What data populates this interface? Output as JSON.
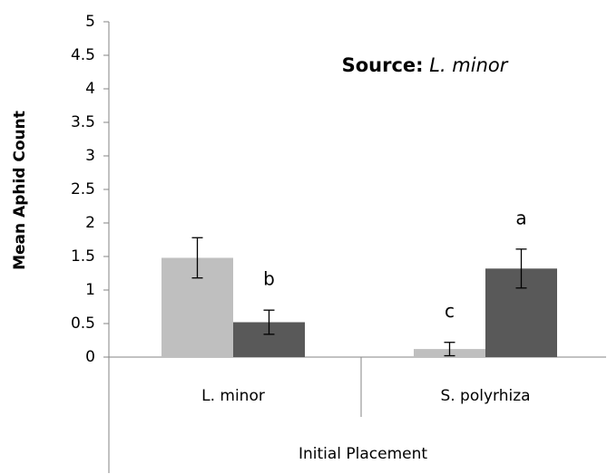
{
  "chart_data": {
    "type": "bar",
    "title": [
      "Source:",
      "L. minor"
    ],
    "x_label": "Initial Placement",
    "y_label": "Mean Aphid Count",
    "categories": [
      "L. minor",
      "S. polyrhiza"
    ],
    "series": [
      {
        "color": "#bfbfbf",
        "values": [
          1.48,
          0.12
        ],
        "errors": [
          0.3,
          0.1
        ],
        "letters": [
          null,
          "c"
        ]
      },
      {
        "color": "#595959",
        "values": [
          0.52,
          1.32
        ],
        "errors": [
          0.18,
          0.29
        ],
        "letters": [
          "b",
          "a"
        ]
      }
    ],
    "ylim": [
      0,
      5
    ],
    "yticks": [
      0,
      0.5,
      1,
      1.5,
      2,
      2.5,
      3,
      3.5,
      4,
      4.5,
      5
    ],
    "grid": false
  }
}
